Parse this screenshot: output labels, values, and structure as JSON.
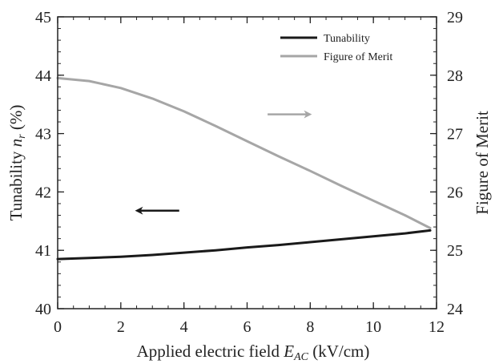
{
  "chart_data": {
    "type": "line",
    "x_axis": {
      "label_prefix": "Applied electric field ",
      "label_var": "E",
      "label_sub": "AC",
      "label_suffix": " (kV/cm)",
      "range": [
        0,
        12
      ],
      "ticks": [
        0,
        2,
        4,
        6,
        8,
        10,
        12
      ]
    },
    "y_left": {
      "label_prefix": "Tunability ",
      "label_var": "n",
      "label_sub": "r",
      "label_suffix": " (%)",
      "range": [
        40,
        45
      ],
      "ticks": [
        40,
        41,
        42,
        43,
        44,
        45
      ]
    },
    "y_right": {
      "label": "Figure of Merit",
      "range": [
        24,
        29
      ],
      "ticks": [
        24,
        25,
        26,
        27,
        28,
        29
      ]
    },
    "series": [
      {
        "name": "Tunability",
        "axis": "left",
        "color": "#1a1a1a",
        "x": [
          0,
          1,
          2,
          3,
          4,
          5,
          6,
          7,
          8,
          9,
          10,
          11,
          11.8
        ],
        "y": [
          40.85,
          40.87,
          40.89,
          40.92,
          40.96,
          41.0,
          41.05,
          41.09,
          41.14,
          41.19,
          41.24,
          41.29,
          41.34
        ]
      },
      {
        "name": "Figure of Merit",
        "axis": "right",
        "color": "#a6a6a6",
        "x": [
          0,
          1,
          2,
          3,
          4,
          5,
          6,
          7,
          8,
          9,
          10,
          11,
          11.8
        ],
        "y": [
          27.95,
          27.9,
          27.78,
          27.6,
          27.38,
          27.13,
          26.87,
          26.61,
          26.36,
          26.1,
          25.85,
          25.6,
          25.38
        ]
      }
    ],
    "annotations": [
      {
        "name": "left-arrow",
        "direction": "left",
        "color": "#1a1a1a",
        "axis": "left",
        "x_from": 3.85,
        "x_to": 2.55,
        "y": 41.68
      },
      {
        "name": "right-arrow",
        "direction": "right",
        "color": "#a6a6a6",
        "axis": "right",
        "x_from": 6.65,
        "x_to": 7.95,
        "y": 27.33
      }
    ],
    "legend": {
      "position": "top-right"
    },
    "grid": false,
    "minor_ticks": true
  }
}
